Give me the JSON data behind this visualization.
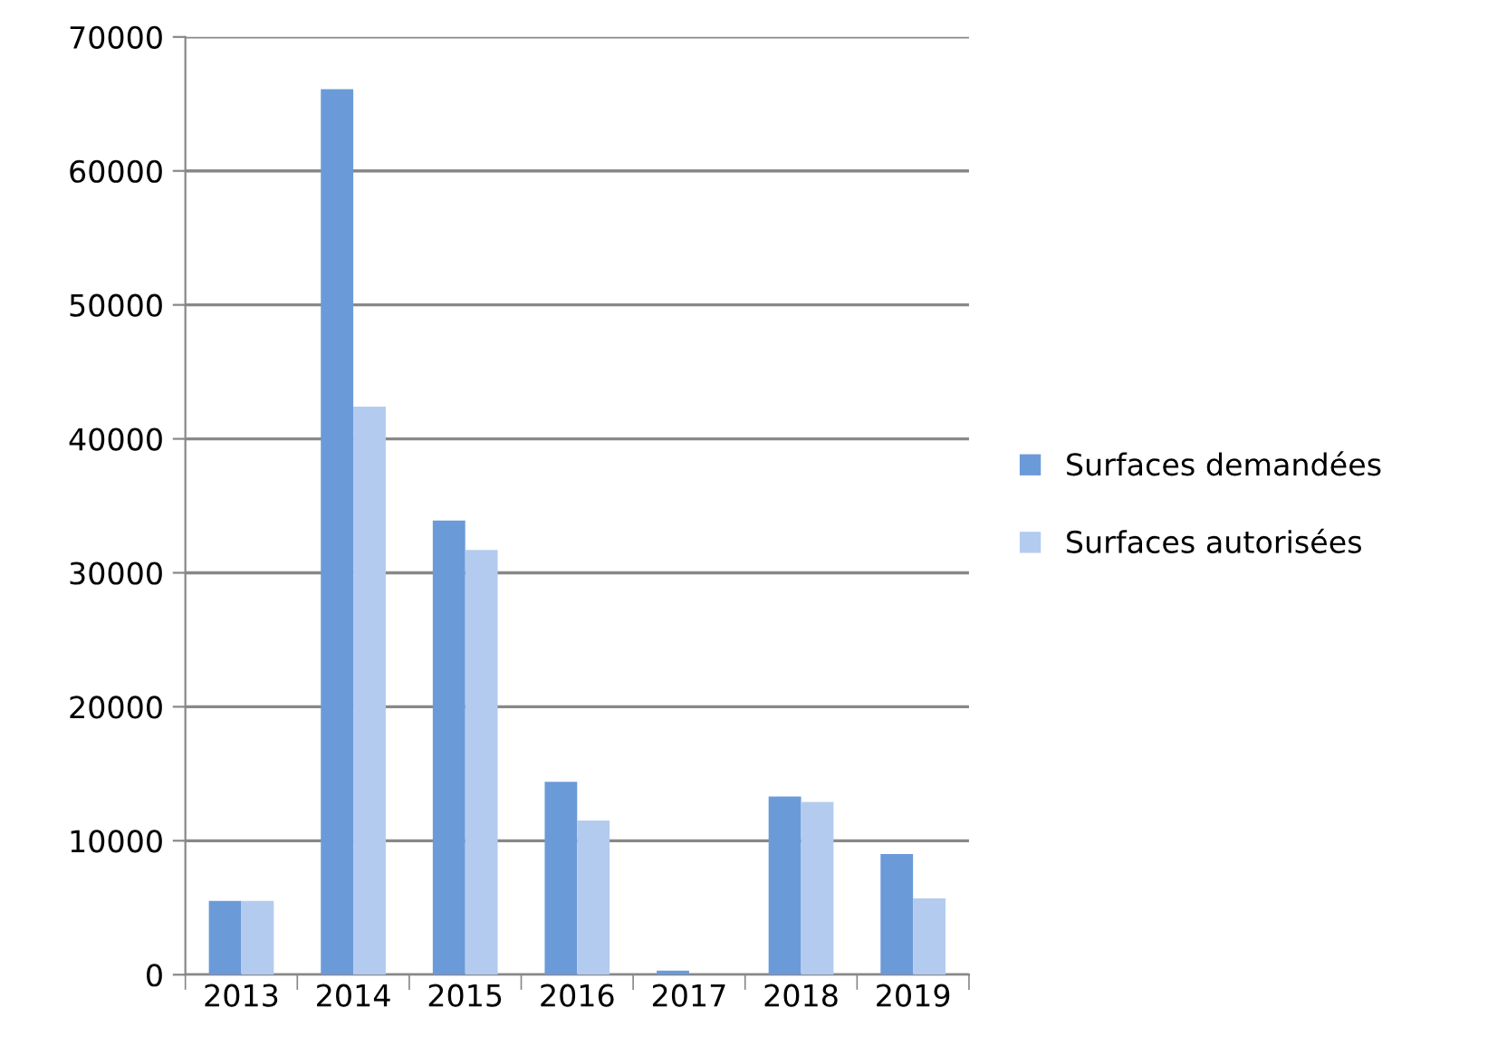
{
  "chart_data": {
    "type": "bar",
    "categories": [
      "2013",
      "2014",
      "2015",
      "2016",
      "2017",
      "2018",
      "2019"
    ],
    "series": [
      {
        "name": "Surfaces demandées",
        "color": "#6b9ad8",
        "values": [
          5500,
          66100,
          33900,
          14400,
          300,
          13300,
          9000
        ]
      },
      {
        "name": "Surfaces autorisées",
        "color": "#b4cbf0",
        "values": [
          5500,
          42400,
          31700,
          11500,
          0,
          12900,
          5700
        ]
      }
    ],
    "ylim": [
      0,
      70000
    ],
    "yticks": [
      0,
      10000,
      20000,
      30000,
      40000,
      50000,
      60000,
      70000
    ],
    "grid": "y",
    "legend": "right"
  }
}
